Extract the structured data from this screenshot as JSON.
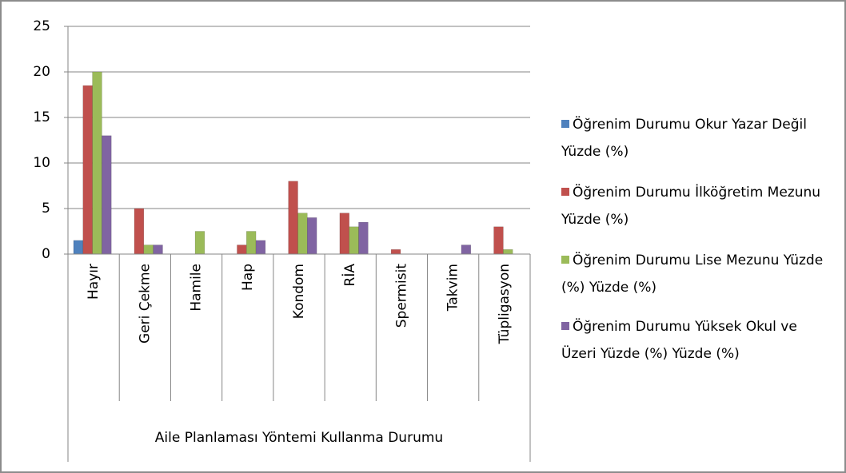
{
  "chart_data": {
    "type": "bar",
    "x_label": "Aile Planlaması Yöntemi Kullanma Durumu",
    "categories": [
      "Hayır",
      "Geri Çekme",
      "Hamile",
      "Hap",
      "Kondom",
      "RİA",
      "Spermisit",
      "Takvim",
      "Tüpligasyon"
    ],
    "series": [
      {
        "name": "Öğrenim Durumu     Okur Yazar Değil  Yüzde (%)",
        "color": "#4f81bd",
        "values": [
          1.5,
          0,
          0,
          0,
          0,
          0,
          0,
          0,
          0
        ]
      },
      {
        "name": "Öğrenim Durumu İlköğretim Mezunu Yüzde (%)",
        "color": "#c0504d",
        "values": [
          18.5,
          5,
          0,
          1,
          8,
          4.5,
          0.5,
          0,
          3
        ]
      },
      {
        "name": "Öğrenim Durumu Lise  Mezunu Yüzde (%) Yüzde (%)",
        "color": "#9bbb59",
        "values": [
          20,
          1,
          2.5,
          2.5,
          4.5,
          3,
          0,
          0,
          0.5
        ]
      },
      {
        "name": "Öğrenim Durumu Yüksek Okul ve Üzeri Yüzde (%) Yüzde (%)",
        "color": "#8064a2",
        "values": [
          13,
          1,
          0,
          1.5,
          4,
          3.5,
          0,
          1,
          0
        ]
      }
    ],
    "ylim": [
      0,
      25
    ],
    "yticks": [
      0,
      5,
      10,
      15,
      20,
      25
    ],
    "grid": true,
    "legend": "right"
  }
}
